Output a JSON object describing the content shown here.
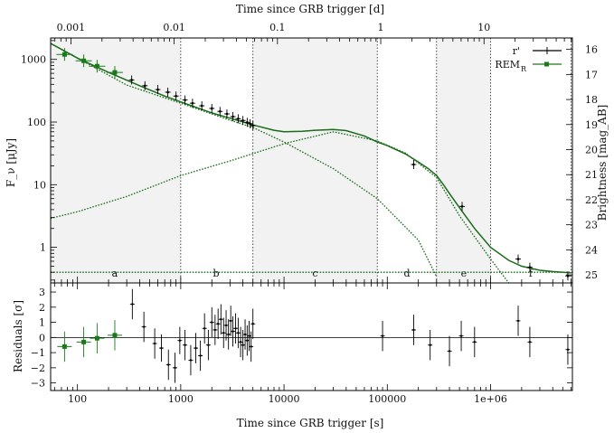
{
  "chart_data": [
    {
      "type": "line",
      "panel": "main",
      "title": "",
      "xlabel_top": "Time since GRB trigger [d]",
      "ylabel": "F_ν [μJy]",
      "ylabel_right": "Brightness [mag_AB]",
      "xscale": "log",
      "yscale": "log",
      "xlim": [
        55,
        6200000
      ],
      "ylim": [
        0.27,
        2200
      ],
      "x_ticks": [
        "100",
        "1000",
        "10000",
        "100000",
        "1e+06"
      ],
      "x_ticks_top": [
        "0.001",
        "0.01",
        "0.1",
        "1",
        "10"
      ],
      "y_ticks": [
        "1",
        "10",
        "100",
        "1000"
      ],
      "y_ticks_right": [
        "16",
        "17",
        "18",
        "19",
        "20",
        "21",
        "22",
        "23",
        "24",
        "25"
      ],
      "segment_boundaries": [
        1000,
        5000,
        80000,
        300000,
        1000000,
        6000000
      ],
      "segments": [
        {
          "label": "a",
          "x": 230
        },
        {
          "label": "b",
          "x": 2200
        },
        {
          "label": "c",
          "x": 20000
        },
        {
          "label": "d",
          "x": 155000
        },
        {
          "label": "e",
          "x": 550000
        },
        {
          "label": "f",
          "x": 2450000
        }
      ],
      "legend": [
        {
          "name": "r'",
          "color": "#000000",
          "marker": "plus"
        },
        {
          "name": "REM_R",
          "color": "#1a7a1a",
          "marker": "square"
        }
      ],
      "legend_position": "top-right",
      "grid": false,
      "model_components": [
        {
          "name": "total",
          "style": "solid",
          "color": "#1a6b1a",
          "x": [
            55,
            100,
            200,
            400,
            700,
            1000,
            2000,
            3000,
            5000,
            8000,
            10000,
            15000,
            20000,
            30000,
            40000,
            60000,
            80000,
            100000,
            150000,
            200000,
            250000,
            300000,
            350000,
            400000,
            500000,
            700000,
            1000000,
            1500000,
            2000000,
            3000000,
            4000000,
            6000000
          ],
          "y": [
            1800,
            1050,
            620,
            380,
            260,
            210,
            140,
            115,
            90,
            74,
            70,
            71,
            74,
            76,
            73,
            60,
            48,
            42,
            31,
            23,
            18,
            14,
            10,
            7.2,
            4.3,
            2.0,
            1.0,
            0.62,
            0.5,
            0.43,
            0.41,
            0.39
          ]
        },
        {
          "name": "early-decay",
          "style": "dotted",
          "color": "#1a6b1a",
          "x": [
            55,
            100,
            300,
            1000,
            3000,
            5000,
            10000,
            30000,
            80000,
            200000,
            300000
          ],
          "y": [
            1800,
            1050,
            390,
            200,
            107,
            82,
            48,
            18,
            6.0,
            1.3,
            0.34
          ]
        },
        {
          "name": "rise-peak",
          "style": "dotted",
          "color": "#1a6b1a",
          "x": [
            55,
            100,
            300,
            1000,
            3000,
            10000,
            30000,
            80000,
            150000,
            300000,
            500000,
            1000000,
            1500000
          ],
          "y": [
            2.9,
            3.7,
            6.5,
            14,
            24,
            45,
            70,
            50,
            32,
            13,
            3.2,
            0.65,
            0.27
          ]
        },
        {
          "name": "host",
          "style": "dotted",
          "color": "#1a6b1a",
          "x": [
            55,
            6200000
          ],
          "y": [
            0.4,
            0.4
          ]
        }
      ],
      "series": [
        {
          "name": "r'",
          "color": "#000000",
          "x": [
            335,
            450,
            600,
            750,
            900,
            1100,
            1300,
            1600,
            2000,
            2400,
            2800,
            3200,
            3600,
            4000,
            4400,
            4700,
            5000,
            180000,
            530000,
            1850000,
            2400000,
            5600000
          ],
          "y": [
            470,
            380,
            330,
            300,
            260,
            225,
            200,
            182,
            165,
            148,
            135,
            122,
            113,
            106,
            99,
            94,
            88,
            21,
            4.5,
            0.65,
            0.48,
            0.35
          ]
        },
        {
          "name": "REM_R",
          "color": "#1a7a1a",
          "x": [
            75,
            115,
            155,
            230
          ],
          "y": [
            1200,
            950,
            780,
            620
          ]
        }
      ]
    },
    {
      "type": "scatter",
      "panel": "residuals",
      "xlabel": "Time since GRB trigger [s]",
      "ylabel": "Residuals [σ]",
      "xscale": "log",
      "xlim": [
        55,
        6200000
      ],
      "ylim": [
        -3.5,
        3.6
      ],
      "y_ticks": [
        "-3",
        "-2",
        "-1",
        "0",
        "1",
        "2",
        "3"
      ],
      "reference_line": 0,
      "series": [
        {
          "name": "r'",
          "color": "#000000",
          "x": [
            340,
            440,
            560,
            650,
            760,
            880,
            980,
            1100,
            1250,
            1400,
            1550,
            1700,
            1850,
            2000,
            2150,
            2300,
            2450,
            2600,
            2750,
            2900,
            3050,
            3200,
            3400,
            3600,
            3800,
            4000,
            4200,
            4400,
            4600,
            4800,
            5000,
            90000,
            180000,
            260000,
            400000,
            520000,
            700000,
            1850000,
            2400000,
            5600000
          ],
          "y": [
            2.2,
            0.7,
            -0.4,
            -0.7,
            -1.8,
            -2.0,
            -0.2,
            -0.5,
            -1.5,
            -0.7,
            -1.2,
            0.6,
            -0.5,
            1.0,
            0.5,
            0.9,
            1.2,
            0.3,
            0.8,
            0.2,
            1.1,
            0.4,
            0.6,
            0.3,
            -0.3,
            -0.5,
            0.2,
            -0.2,
            0.1,
            -0.6,
            0.9,
            0.1,
            0.5,
            -0.5,
            -0.9,
            0.1,
            -0.3,
            1.1,
            -0.3,
            -0.8
          ],
          "yerr": [
            1.0,
            1.0,
            1.0,
            0.9,
            1.0,
            1.0,
            0.9,
            1.0,
            1.0,
            1.0,
            1.0,
            1.0,
            1.0,
            1.0,
            1.0,
            1.0,
            1.0,
            1.0,
            1.0,
            1.0,
            1.0,
            1.0,
            1.0,
            1.0,
            1.0,
            1.0,
            1.0,
            1.0,
            1.0,
            1.0,
            1.0,
            1.0,
            1.0,
            1.0,
            1.0,
            1.0,
            1.0,
            1.0,
            1.0,
            1.0
          ]
        },
        {
          "name": "REM_R",
          "color": "#1a7a1a",
          "x": [
            75,
            115,
            155,
            230
          ],
          "y": [
            -0.6,
            -0.3,
            -0.05,
            0.15
          ],
          "yerr": [
            1.0,
            1.0,
            1.0,
            1.0
          ]
        }
      ]
    }
  ]
}
